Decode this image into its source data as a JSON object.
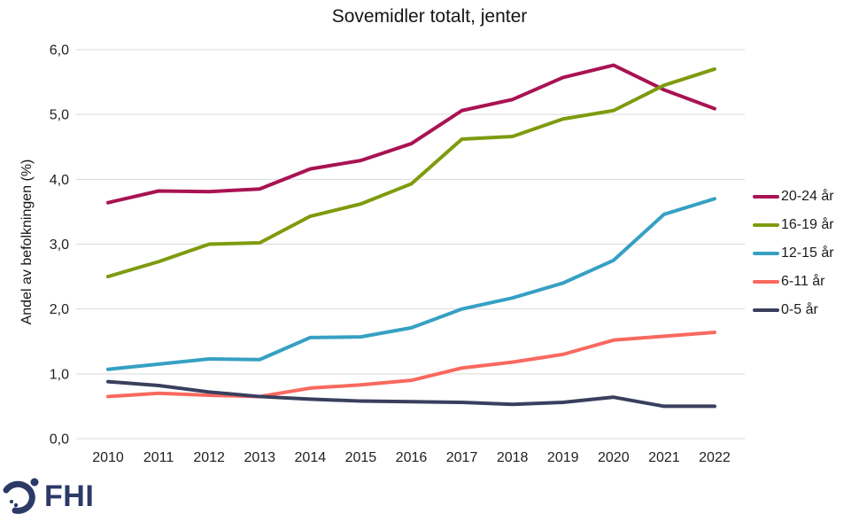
{
  "title": "Sovemidler totalt, jenter",
  "logo": {
    "text": "FHI",
    "color": "#2b3a67"
  },
  "colors": {
    "gridline": "#d9d9d9",
    "text": "#1f1f1f",
    "background": "#ffffff"
  },
  "chart_data": {
    "type": "line",
    "title": "Sovemidler totalt, jenter",
    "xlabel": "",
    "ylabel": "Andel av befolkningen (%)",
    "ylim": [
      0,
      6
    ],
    "ytick_step": 1,
    "decimal_separator": ",",
    "grid": "horizontal",
    "legend_position": "right",
    "x": [
      2010,
      2011,
      2012,
      2013,
      2014,
      2015,
      2016,
      2017,
      2018,
      2019,
      2020,
      2021,
      2022
    ],
    "series": [
      {
        "name": "20-24 år",
        "color": "#a81352",
        "values": [
          3.64,
          3.82,
          3.81,
          3.85,
          4.16,
          4.29,
          4.55,
          5.06,
          5.23,
          5.57,
          5.76,
          5.38,
          5.09
        ]
      },
      {
        "name": "16-19 år",
        "color": "#7e9b0e",
        "values": [
          2.5,
          2.73,
          3.0,
          3.02,
          3.43,
          3.62,
          3.93,
          4.62,
          4.66,
          4.93,
          5.06,
          5.45,
          5.7
        ]
      },
      {
        "name": "12-15 år",
        "color": "#36a0c3",
        "values": [
          1.07,
          1.15,
          1.23,
          1.22,
          1.56,
          1.57,
          1.71,
          2.0,
          2.17,
          2.4,
          2.75,
          3.46,
          3.7
        ]
      },
      {
        "name": "6-11 år",
        "color": "#f9695f",
        "values": [
          0.65,
          0.7,
          0.67,
          0.65,
          0.78,
          0.83,
          0.9,
          1.09,
          1.18,
          1.3,
          1.52,
          1.58,
          1.64
        ]
      },
      {
        "name": "0-5 år",
        "color": "#393f5e",
        "values": [
          0.88,
          0.82,
          0.72,
          0.65,
          0.61,
          0.58,
          0.57,
          0.56,
          0.53,
          0.56,
          0.64,
          0.5,
          0.5
        ]
      }
    ]
  }
}
